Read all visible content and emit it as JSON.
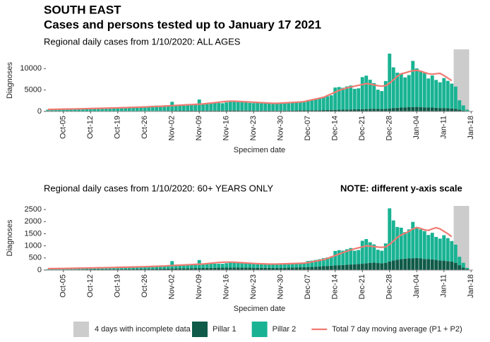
{
  "title": "SOUTH EAST",
  "subtitle": "Cases and persons tested up to January 17 2021",
  "chart_data": [
    {
      "type": "bar",
      "stacked": true,
      "title": "Regional daily cases from 1/10/2020: ALL AGES",
      "ylabel": "Diagnoses",
      "xlabel": "Specimen date",
      "ylim": [
        0,
        14500
      ],
      "yticks": [
        0,
        5000,
        10000
      ],
      "incomplete_days": 4,
      "incomplete_color": "#cccccc",
      "incomplete_label": "4 days with incomplete data",
      "categories": [
        null,
        null,
        null,
        null,
        "Oct-05",
        null,
        null,
        null,
        null,
        null,
        null,
        "Oct-12",
        null,
        null,
        null,
        null,
        null,
        null,
        "Oct-19",
        null,
        null,
        null,
        null,
        null,
        null,
        "Oct-26",
        null,
        null,
        null,
        null,
        null,
        null,
        "Nov-02",
        null,
        null,
        null,
        null,
        null,
        null,
        "Nov-09",
        null,
        null,
        null,
        null,
        null,
        null,
        "Nov-16",
        null,
        null,
        null,
        null,
        null,
        null,
        "Nov-23",
        null,
        null,
        null,
        null,
        null,
        null,
        "Nov-30",
        null,
        null,
        null,
        null,
        null,
        null,
        "Dec-07",
        null,
        null,
        null,
        null,
        null,
        null,
        "Dec-14",
        null,
        null,
        null,
        null,
        null,
        null,
        "Dec-21",
        null,
        null,
        null,
        null,
        null,
        null,
        "Dec-28",
        null,
        null,
        null,
        null,
        null,
        null,
        "Jan-04",
        null,
        null,
        null,
        null,
        null,
        null,
        "Jan-11",
        null,
        null,
        null,
        null,
        null,
        null,
        "Jan-18"
      ],
      "series": [
        {
          "name": "Pillar 1",
          "color": "#0f5a48",
          "values": [
            40,
            40,
            45,
            45,
            50,
            50,
            55,
            55,
            60,
            60,
            65,
            65,
            70,
            70,
            75,
            75,
            80,
            80,
            85,
            85,
            90,
            90,
            95,
            95,
            100,
            100,
            110,
            110,
            120,
            120,
            130,
            140,
            150,
            150,
            160,
            160,
            170,
            170,
            180,
            180,
            190,
            190,
            200,
            200,
            210,
            210,
            220,
            220,
            230,
            220,
            220,
            210,
            210,
            200,
            200,
            200,
            200,
            190,
            190,
            190,
            200,
            200,
            210,
            220,
            230,
            240,
            250,
            260,
            270,
            280,
            300,
            320,
            340,
            360,
            380,
            400,
            420,
            440,
            460,
            480,
            500,
            520,
            560,
            600,
            620,
            580,
            560,
            600,
            700,
            800,
            850,
            900,
            950,
            1000,
            1000,
            1050,
            1000,
            950,
            900,
            900,
            850,
            800,
            800,
            750,
            700,
            600,
            400,
            200,
            100,
            null
          ]
        },
        {
          "name": "Pillar 2",
          "color": "#19b393",
          "values": [
            350,
            400,
            380,
            420,
            450,
            500,
            550,
            520,
            600,
            620,
            580,
            650,
            700,
            720,
            680,
            750,
            800,
            760,
            850,
            900,
            950,
            1000,
            980,
            1050,
            1000,
            1100,
            1150,
            1200,
            1250,
            1200,
            1300,
            1250,
            2100,
            1350,
            1400,
            1450,
            1500,
            1450,
            1400,
            2600,
            1600,
            1700,
            1750,
            1800,
            1750,
            1700,
            1900,
            2200,
            2100,
            2000,
            2050,
            1900,
            1800,
            1750,
            1800,
            1700,
            1750,
            1650,
            1600,
            1550,
            1650,
            1700,
            1750,
            1800,
            1850,
            1900,
            1950,
            2400,
            2500,
            2600,
            2800,
            3000,
            3200,
            3400,
            5200,
            5300,
            5100,
            5400,
            5600,
            4800,
            4900,
            7500,
            7800,
            6800,
            6000,
            4500,
            4200,
            6500,
            12800,
            9500,
            8200,
            8000,
            7000,
            7500,
            10800,
            9000,
            8500,
            8000,
            6800,
            7500,
            6500,
            6000,
            7000,
            6400,
            5800,
            5200,
            2200,
            1200,
            300,
            null
          ]
        },
        {
          "name": "Total 7 day moving average (P1 + P2)",
          "type": "line",
          "color": "#f07a72",
          "values": [
            450,
            470,
            490,
            510,
            530,
            550,
            570,
            590,
            610,
            630,
            650,
            680,
            700,
            720,
            740,
            760,
            780,
            800,
            830,
            860,
            890,
            920,
            950,
            980,
            1010,
            1040,
            1080,
            1120,
            1160,
            1200,
            1240,
            1300,
            1350,
            1400,
            1450,
            1500,
            1550,
            1600,
            1650,
            1700,
            1750,
            1850,
            1950,
            2050,
            2150,
            2250,
            2350,
            2400,
            2400,
            2350,
            2300,
            2250,
            2200,
            2150,
            2100,
            2050,
            2000,
            1950,
            1900,
            1900,
            1950,
            2000,
            2050,
            2100,
            2150,
            2200,
            2300,
            2500,
            2700,
            2900,
            3100,
            3300,
            3700,
            4100,
            4500,
            4900,
            5200,
            5500,
            5700,
            5900,
            6100,
            6300,
            6500,
            6400,
            6200,
            6000,
            5900,
            6000,
            6600,
            7400,
            8200,
            8800,
            9000,
            9300,
            9500,
            9600,
            9400,
            9100,
            8800,
            8700,
            8800,
            8900,
            8400,
            7800,
            7200,
            null,
            null,
            null,
            null,
            null
          ]
        }
      ]
    },
    {
      "type": "bar",
      "stacked": true,
      "title": "Regional daily cases from 1/10/2020: 60+ YEARS ONLY",
      "note": "NOTE: different y-axis scale",
      "ylabel": "Diagnoses",
      "xlabel": "Specimen date",
      "ylim": [
        0,
        2650
      ],
      "yticks": [
        0,
        500,
        1000,
        1500,
        2000,
        2500
      ],
      "incomplete_days": 4,
      "incomplete_color": "#cccccc",
      "categories": [
        null,
        null,
        null,
        null,
        "Oct-05",
        null,
        null,
        null,
        null,
        null,
        null,
        "Oct-12",
        null,
        null,
        null,
        null,
        null,
        null,
        "Oct-19",
        null,
        null,
        null,
        null,
        null,
        null,
        "Oct-26",
        null,
        null,
        null,
        null,
        null,
        null,
        "Nov-02",
        null,
        null,
        null,
        null,
        null,
        null,
        "Nov-09",
        null,
        null,
        null,
        null,
        null,
        null,
        "Nov-16",
        null,
        null,
        null,
        null,
        null,
        null,
        "Nov-23",
        null,
        null,
        null,
        null,
        null,
        null,
        "Nov-30",
        null,
        null,
        null,
        null,
        null,
        null,
        "Dec-07",
        null,
        null,
        null,
        null,
        null,
        null,
        "Dec-14",
        null,
        null,
        null,
        null,
        null,
        null,
        "Dec-21",
        null,
        null,
        null,
        null,
        null,
        null,
        "Dec-28",
        null,
        null,
        null,
        null,
        null,
        null,
        "Jan-04",
        null,
        null,
        null,
        null,
        null,
        null,
        "Jan-11",
        null,
        null,
        null,
        null,
        null,
        null,
        "Jan-18"
      ],
      "series": [
        {
          "color": "#0f5a48",
          "values": [
            15,
            15,
            18,
            18,
            20,
            20,
            22,
            22,
            25,
            25,
            28,
            28,
            30,
            30,
            32,
            32,
            35,
            35,
            38,
            38,
            40,
            40,
            42,
            42,
            45,
            45,
            50,
            50,
            55,
            55,
            60,
            65,
            70,
            70,
            75,
            75,
            80,
            80,
            85,
            85,
            90,
            90,
            95,
            95,
            100,
            100,
            105,
            105,
            110,
            105,
            105,
            100,
            100,
            95,
            95,
            95,
            95,
            90,
            90,
            90,
            95,
            95,
            100,
            105,
            110,
            115,
            120,
            125,
            130,
            140,
            150,
            160,
            170,
            180,
            190,
            200,
            210,
            220,
            230,
            240,
            250,
            260,
            280,
            300,
            310,
            290,
            280,
            300,
            350,
            400,
            430,
            450,
            470,
            480,
            490,
            500,
            480,
            460,
            450,
            440,
            420,
            400,
            390,
            370,
            350,
            300,
            200,
            100,
            40,
            null
          ]
        },
        {
          "color": "#19b393",
          "values": [
            20,
            25,
            25,
            30,
            30,
            35,
            35,
            40,
            40,
            45,
            45,
            50,
            55,
            55,
            60,
            60,
            65,
            65,
            70,
            75,
            80,
            85,
            85,
            90,
            90,
            100,
            105,
            110,
            115,
            110,
            120,
            115,
            300,
            130,
            135,
            140,
            145,
            140,
            135,
            330,
            150,
            160,
            165,
            170,
            165,
            160,
            180,
            210,
            200,
            190,
            195,
            180,
            170,
            165,
            170,
            160,
            165,
            155,
            150,
            145,
            150,
            160,
            165,
            170,
            175,
            180,
            185,
            250,
            260,
            280,
            300,
            330,
            350,
            380,
            600,
            620,
            590,
            640,
            680,
            560,
            580,
            950,
            1000,
            850,
            750,
            550,
            520,
            800,
            2200,
            1650,
            1350,
            1300,
            1100,
            1200,
            1500,
            1250,
            1200,
            1150,
            1000,
            1100,
            950,
            900,
            1050,
            950,
            850,
            750,
            350,
            200,
            50,
            null
          ]
        },
        {
          "type": "line",
          "color": "#f07a72",
          "values": [
            60,
            62,
            64,
            66,
            68,
            70,
            73,
            76,
            79,
            82,
            85,
            88,
            91,
            94,
            97,
            100,
            104,
            108,
            112,
            116,
            120,
            124,
            128,
            132,
            136,
            140,
            146,
            152,
            158,
            164,
            170,
            180,
            188,
            196,
            204,
            212,
            220,
            228,
            236,
            244,
            252,
            268,
            284,
            300,
            315,
            325,
            330,
            330,
            325,
            315,
            305,
            295,
            285,
            275,
            265,
            260,
            255,
            250,
            250,
            250,
            255,
            260,
            265,
            270,
            275,
            280,
            290,
            310,
            340,
            370,
            400,
            430,
            480,
            540,
            600,
            660,
            720,
            780,
            830,
            880,
            920,
            960,
            1000,
            990,
            970,
            950,
            940,
            960,
            1060,
            1200,
            1350,
            1450,
            1520,
            1600,
            1700,
            1760,
            1720,
            1660,
            1640,
            1700,
            1750,
            1700,
            1600,
            1500,
            1380,
            null,
            null,
            null,
            null,
            null
          ]
        }
      ]
    }
  ]
}
